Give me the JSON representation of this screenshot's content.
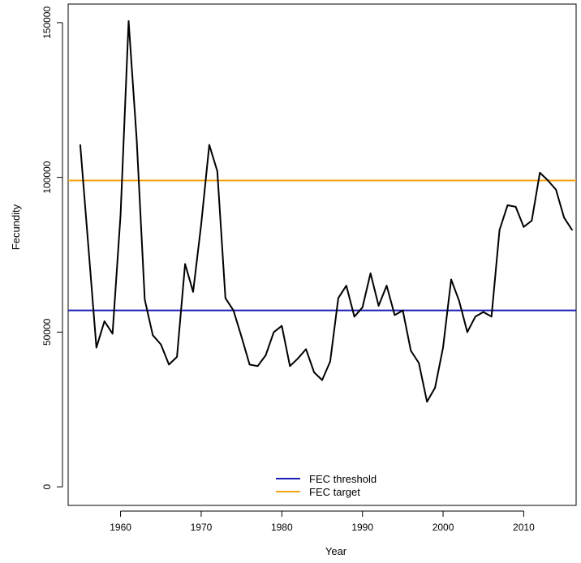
{
  "chart_data": {
    "type": "line",
    "title": "",
    "xlabel": "Year",
    "ylabel": "Fecundity",
    "xlim": [
      1953.5,
      2016.5
    ],
    "ylim": [
      -6000,
      156000
    ],
    "x_ticks": [
      1960,
      1970,
      1980,
      1990,
      2000,
      2010
    ],
    "y_ticks": [
      0,
      50000,
      100000,
      150000
    ],
    "x_tick_labels": [
      "1960",
      "1970",
      "1980",
      "1990",
      "2000",
      "2010"
    ],
    "y_tick_labels": [
      "0",
      "50000",
      "100000",
      "150000"
    ],
    "grid": false,
    "legend_position": "bottom-center",
    "series": [
      {
        "color": "#000000",
        "x": [
          1955,
          1956,
          1957,
          1958,
          1959,
          1960,
          1961,
          1962,
          1963,
          1964,
          1965,
          1966,
          1967,
          1968,
          1969,
          1970,
          1971,
          1972,
          1973,
          1974,
          1975,
          1976,
          1977,
          1978,
          1979,
          1980,
          1981,
          1982,
          1983,
          1984,
          1985,
          1986,
          1987,
          1988,
          1989,
          1990,
          1991,
          1992,
          1993,
          1994,
          1995,
          1996,
          1997,
          1998,
          1999,
          2000,
          2001,
          2002,
          2003,
          2004,
          2005,
          2006,
          2007,
          2008,
          2009,
          2010,
          2011,
          2012,
          2013,
          2014,
          2015,
          2016
        ],
        "values": [
          110500,
          78000,
          45000,
          53500,
          49500,
          88000,
          150500,
          112000,
          60500,
          49000,
          46000,
          39500,
          42000,
          72000,
          63000,
          85000,
          110500,
          102000,
          61000,
          57000,
          48500,
          39500,
          39000,
          42500,
          50000,
          52000,
          39000,
          41500,
          44500,
          37000,
          34500,
          40500,
          61000,
          65000,
          55000,
          58000,
          69000,
          58500,
          65000,
          55500,
          57000,
          44000,
          40000,
          27500,
          32000,
          45000,
          67000,
          60000,
          50000,
          55000,
          56500,
          55000,
          83000,
          91000,
          90500,
          84000,
          86000,
          101500,
          99000,
          96000,
          87000,
          83000
        ]
      }
    ],
    "reference_lines": [
      {
        "name": "FEC threshold",
        "value": 57000,
        "color": "#1c1cb4"
      },
      {
        "name": "FEC target",
        "value": 99000,
        "color": "#f5a314"
      }
    ]
  }
}
